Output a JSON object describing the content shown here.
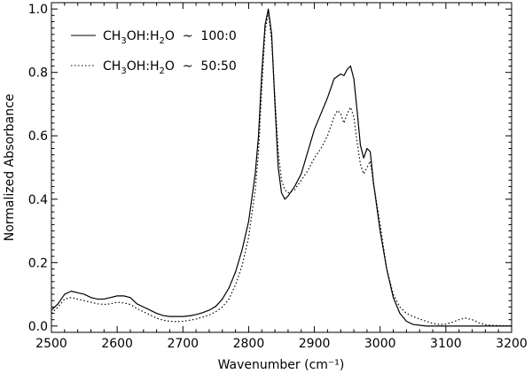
{
  "chart_data": {
    "type": "line",
    "xlabel": "Wavenumber (cm⁻¹)",
    "ylabel": "Normalized Absorbance",
    "xlim": [
      2500,
      3200
    ],
    "ylim": [
      -0.02,
      1.02
    ],
    "x_ticks": [
      "2500",
      "2600",
      "2700",
      "2800",
      "2900",
      "3000",
      "3100",
      "3200"
    ],
    "y_ticks": [
      "0.0",
      "0.2",
      "0.4",
      "0.6",
      "0.8",
      "1.0"
    ],
    "grid": false,
    "legend_position": "top-left",
    "series": [
      {
        "name": "CH3OH:H2O ~ 100:0",
        "style": "solid",
        "color": "#000000",
        "points": [
          [
            2500,
            0.05
          ],
          [
            2510,
            0.07
          ],
          [
            2520,
            0.1
          ],
          [
            2530,
            0.11
          ],
          [
            2540,
            0.105
          ],
          [
            2550,
            0.1
          ],
          [
            2560,
            0.09
          ],
          [
            2570,
            0.085
          ],
          [
            2580,
            0.085
          ],
          [
            2590,
            0.09
          ],
          [
            2600,
            0.095
          ],
          [
            2610,
            0.095
          ],
          [
            2620,
            0.09
          ],
          [
            2630,
            0.07
          ],
          [
            2640,
            0.06
          ],
          [
            2650,
            0.05
          ],
          [
            2660,
            0.04
          ],
          [
            2670,
            0.033
          ],
          [
            2680,
            0.03
          ],
          [
            2690,
            0.03
          ],
          [
            2700,
            0.03
          ],
          [
            2710,
            0.032
          ],
          [
            2720,
            0.036
          ],
          [
            2730,
            0.042
          ],
          [
            2740,
            0.05
          ],
          [
            2750,
            0.062
          ],
          [
            2760,
            0.085
          ],
          [
            2770,
            0.12
          ],
          [
            2780,
            0.17
          ],
          [
            2790,
            0.24
          ],
          [
            2800,
            0.33
          ],
          [
            2810,
            0.48
          ],
          [
            2815,
            0.6
          ],
          [
            2820,
            0.8
          ],
          [
            2825,
            0.95
          ],
          [
            2830,
            1.0
          ],
          [
            2835,
            0.92
          ],
          [
            2840,
            0.7
          ],
          [
            2845,
            0.5
          ],
          [
            2850,
            0.42
          ],
          [
            2855,
            0.4
          ],
          [
            2860,
            0.41
          ],
          [
            2870,
            0.44
          ],
          [
            2880,
            0.48
          ],
          [
            2890,
            0.55
          ],
          [
            2900,
            0.62
          ],
          [
            2910,
            0.67
          ],
          [
            2920,
            0.72
          ],
          [
            2930,
            0.78
          ],
          [
            2940,
            0.795
          ],
          [
            2945,
            0.79
          ],
          [
            2950,
            0.81
          ],
          [
            2955,
            0.82
          ],
          [
            2960,
            0.78
          ],
          [
            2965,
            0.68
          ],
          [
            2970,
            0.57
          ],
          [
            2975,
            0.53
          ],
          [
            2980,
            0.56
          ],
          [
            2985,
            0.55
          ],
          [
            2990,
            0.45
          ],
          [
            3000,
            0.3
          ],
          [
            3010,
            0.18
          ],
          [
            3020,
            0.09
          ],
          [
            3030,
            0.04
          ],
          [
            3040,
            0.015
          ],
          [
            3050,
            0.005
          ],
          [
            3070,
            0.0
          ],
          [
            3100,
            0.0
          ],
          [
            3150,
            0.0
          ],
          [
            3200,
            0.0
          ]
        ]
      },
      {
        "name": "CH3OH:H2O ~ 50:50",
        "style": "dotted",
        "color": "#000000",
        "points": [
          [
            2500,
            0.04
          ],
          [
            2510,
            0.06
          ],
          [
            2520,
            0.085
          ],
          [
            2530,
            0.09
          ],
          [
            2540,
            0.085
          ],
          [
            2550,
            0.08
          ],
          [
            2560,
            0.075
          ],
          [
            2570,
            0.07
          ],
          [
            2580,
            0.068
          ],
          [
            2590,
            0.07
          ],
          [
            2600,
            0.075
          ],
          [
            2610,
            0.073
          ],
          [
            2620,
            0.068
          ],
          [
            2630,
            0.055
          ],
          [
            2640,
            0.045
          ],
          [
            2650,
            0.035
          ],
          [
            2660,
            0.025
          ],
          [
            2670,
            0.018
          ],
          [
            2680,
            0.015
          ],
          [
            2690,
            0.014
          ],
          [
            2700,
            0.015
          ],
          [
            2710,
            0.018
          ],
          [
            2720,
            0.022
          ],
          [
            2730,
            0.028
          ],
          [
            2740,
            0.035
          ],
          [
            2750,
            0.045
          ],
          [
            2760,
            0.06
          ],
          [
            2770,
            0.085
          ],
          [
            2780,
            0.13
          ],
          [
            2790,
            0.19
          ],
          [
            2800,
            0.28
          ],
          [
            2810,
            0.43
          ],
          [
            2815,
            0.55
          ],
          [
            2820,
            0.75
          ],
          [
            2825,
            0.93
          ],
          [
            2830,
            0.99
          ],
          [
            2835,
            0.9
          ],
          [
            2840,
            0.72
          ],
          [
            2845,
            0.55
          ],
          [
            2850,
            0.46
          ],
          [
            2855,
            0.43
          ],
          [
            2860,
            0.42
          ],
          [
            2870,
            0.43
          ],
          [
            2880,
            0.46
          ],
          [
            2890,
            0.49
          ],
          [
            2900,
            0.53
          ],
          [
            2910,
            0.56
          ],
          [
            2920,
            0.6
          ],
          [
            2930,
            0.66
          ],
          [
            2935,
            0.68
          ],
          [
            2940,
            0.67
          ],
          [
            2945,
            0.64
          ],
          [
            2950,
            0.67
          ],
          [
            2955,
            0.69
          ],
          [
            2960,
            0.66
          ],
          [
            2965,
            0.58
          ],
          [
            2970,
            0.51
          ],
          [
            2975,
            0.48
          ],
          [
            2980,
            0.5
          ],
          [
            2985,
            0.52
          ],
          [
            2990,
            0.45
          ],
          [
            3000,
            0.32
          ],
          [
            3010,
            0.18
          ],
          [
            3020,
            0.1
          ],
          [
            3030,
            0.06
          ],
          [
            3040,
            0.04
          ],
          [
            3050,
            0.03
          ],
          [
            3060,
            0.022
          ],
          [
            3070,
            0.015
          ],
          [
            3080,
            0.008
          ],
          [
            3090,
            0.005
          ],
          [
            3100,
            0.006
          ],
          [
            3110,
            0.012
          ],
          [
            3120,
            0.02
          ],
          [
            3130,
            0.025
          ],
          [
            3140,
            0.02
          ],
          [
            3150,
            0.01
          ],
          [
            3160,
            0.004
          ],
          [
            3170,
            0.002
          ],
          [
            3200,
            0.0
          ]
        ]
      }
    ]
  },
  "legend": {
    "entry_1": {
      "prefix": "CH",
      "sub_a": "3",
      "mid": "OH:H",
      "sub_b": "2",
      "suffix": "O  ~  100:0"
    },
    "entry_2": {
      "prefix": "CH",
      "sub_a": "3",
      "mid": "OH:H",
      "sub_b": "2",
      "suffix": "O  ~  50:50"
    }
  }
}
